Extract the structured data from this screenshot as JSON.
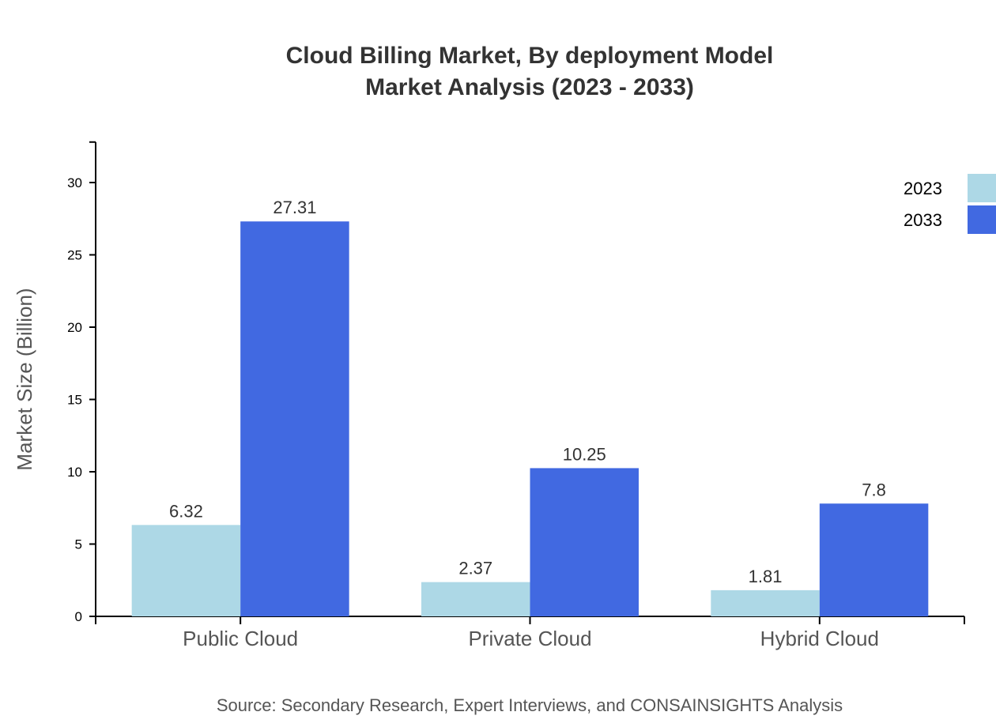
{
  "chart_data": {
    "type": "bar",
    "title": "Cloud Billing Market, By deployment Model",
    "subtitle": "Market Analysis (2023 - 2033)",
    "xlabel": "",
    "ylabel": "Market Size (Billion)",
    "categories": [
      "Public Cloud",
      "Private Cloud",
      "Hybrid Cloud"
    ],
    "series": [
      {
        "name": "2023",
        "color": "#add8e6",
        "values": [
          6.32,
          2.37,
          1.81
        ],
        "labels": [
          "6.32",
          "2.37",
          "1.81"
        ]
      },
      {
        "name": "2033",
        "color": "#4169e1",
        "values": [
          27.31,
          10.25,
          7.8
        ],
        "labels": [
          "27.31",
          "10.25",
          "7.8"
        ]
      }
    ],
    "ylim": [
      0,
      32.8
    ],
    "yticks": [
      "0",
      "5",
      "10",
      "15",
      "20",
      "25",
      "30"
    ],
    "grid": false,
    "legend_position": "top-right",
    "source": "Source: Secondary Research, Expert Interviews, and CONSAINSIGHTS Analysis"
  }
}
